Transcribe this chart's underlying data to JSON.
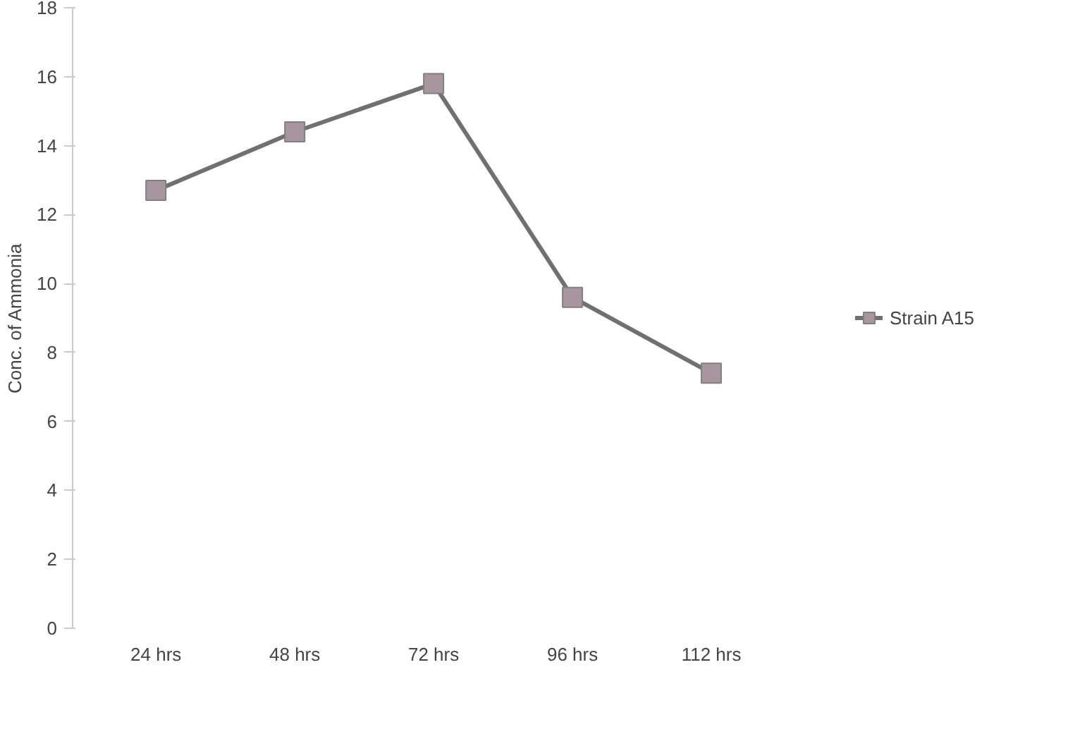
{
  "chart_data": {
    "type": "line",
    "ylabel": "Conc. of Ammonia",
    "categories": [
      "24 hrs",
      "48 hrs",
      "72 hrs",
      "96 hrs",
      "112 hrs"
    ],
    "series": [
      {
        "name": "Strain A15",
        "color": "#a8969f",
        "values": [
          12.7,
          14.4,
          15.8,
          9.6,
          7.4
        ]
      }
    ],
    "ylim": [
      0,
      18
    ],
    "yticks": [
      0,
      2,
      4,
      6,
      8,
      10,
      12,
      14,
      16,
      18
    ],
    "marker": "square",
    "legend": "right",
    "grid": false
  }
}
